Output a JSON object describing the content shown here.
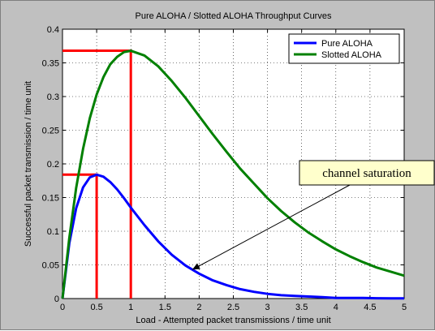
{
  "chart_data": {
    "type": "line",
    "title": "Pure ALOHA / Slotted ALOHA Throughput Curves",
    "xlabel": "Load - Attempted packet transmissions / time unit",
    "ylabel": "Successful packet transmission / time unit",
    "xlim": [
      0,
      5
    ],
    "ylim": [
      0,
      0.4
    ],
    "xticks": [
      0,
      0.5,
      1,
      1.5,
      2,
      2.5,
      3,
      3.5,
      4,
      4.5,
      5
    ],
    "xtick_labels": [
      "0",
      "0.5",
      "1",
      "1.5",
      "2",
      "2.5",
      "3",
      "3.5",
      "4",
      "4.5",
      "5"
    ],
    "yticks": [
      0,
      0.05,
      0.1,
      0.15,
      0.2,
      0.25,
      0.3,
      0.35,
      0.4
    ],
    "ytick_labels": [
      "0",
      "0.05",
      "0.1",
      "0.15",
      "0.2",
      "0.25",
      "0.3",
      "0.35",
      "0.4"
    ],
    "grid": true,
    "legend_position": "top-right",
    "x": [
      0,
      0.1,
      0.2,
      0.3,
      0.4,
      0.5,
      0.6,
      0.7,
      0.8,
      0.9,
      1.0,
      1.2,
      1.4,
      1.6,
      1.8,
      2.0,
      2.2,
      2.4,
      2.6,
      2.8,
      3.0,
      3.2,
      3.4,
      3.6,
      3.8,
      4.0,
      4.2,
      4.4,
      4.6,
      4.8,
      5.0
    ],
    "series": [
      {
        "name": "Pure ALOHA",
        "color": "#0000ff",
        "values": [
          0,
          0.082,
          0.134,
          0.165,
          0.18,
          0.184,
          0.181,
          0.173,
          0.162,
          0.149,
          0.135,
          0.109,
          0.085,
          0.065,
          0.049,
          0.037,
          0.027,
          0.02,
          0.014,
          0.01,
          0.007,
          0.005,
          0.004,
          0.003,
          0.002,
          0.001,
          0.001,
          0.001,
          0.0005,
          0.0003,
          0.0002
        ]
      },
      {
        "name": "Slotted ALOHA",
        "color": "#008000",
        "values": [
          0,
          0.09,
          0.164,
          0.222,
          0.268,
          0.303,
          0.329,
          0.348,
          0.359,
          0.366,
          0.368,
          0.361,
          0.345,
          0.323,
          0.298,
          0.271,
          0.244,
          0.218,
          0.193,
          0.171,
          0.149,
          0.13,
          0.113,
          0.098,
          0.085,
          0.073,
          0.063,
          0.054,
          0.046,
          0.04,
          0.034
        ]
      }
    ],
    "reference_lines": [
      {
        "color": "#ff0000",
        "x": 0.5,
        "y": 0.184
      },
      {
        "color": "#ff0000",
        "x": 1.0,
        "y": 0.368
      }
    ],
    "annotation": {
      "text": "channel saturation",
      "arrow_to": {
        "x": 1.9,
        "y": 0.043
      }
    }
  }
}
